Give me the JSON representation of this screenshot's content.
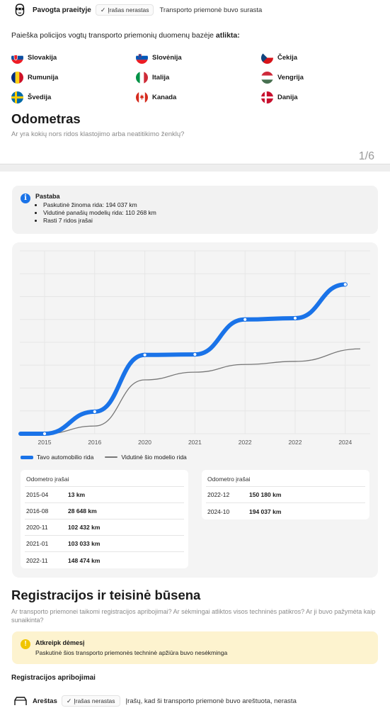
{
  "stolen": {
    "title": "Pavogta praeityje",
    "badge": "Įrašas nerastas",
    "description": "Transporto priemonė buvo surasta"
  },
  "db_search": {
    "text": "Paieška policijos vogtų transporto priemonių duomenų bazėje ",
    "bold": "atlikta:"
  },
  "countries": [
    {
      "name": "Slovakija"
    },
    {
      "name": "Slovėnija"
    },
    {
      "name": "Čekija"
    },
    {
      "name": "Rumunija"
    },
    {
      "name": "Italija"
    },
    {
      "name": "Vengrija"
    },
    {
      "name": "Švedija"
    },
    {
      "name": "Kanada"
    },
    {
      "name": "Danija"
    }
  ],
  "odometer": {
    "title": "Odometras",
    "subtitle": "Ar yra kokių nors ridos klastojimo arba neatitikimo ženklų?",
    "pager": "1/6"
  },
  "note": {
    "title": "Pastaba",
    "items": [
      "Paskutinė žinoma rida: 194 037 km",
      "Vidutinė panašių modelių rida: 110 268 km",
      "Rasti 7 ridos įrašai"
    ]
  },
  "chart_data": {
    "type": "line",
    "x_labels": [
      "2015",
      "2016",
      "2020",
      "2021",
      "2022",
      "2022",
      "2024"
    ],
    "ylim": [
      0,
      210000
    ],
    "series": [
      {
        "name": "Tavo automobilio rida",
        "color": "#1a73e8",
        "points": [
          [
            0,
            13
          ],
          [
            1,
            28648
          ],
          [
            2,
            102432
          ],
          [
            3,
            103033
          ],
          [
            4,
            148474
          ],
          [
            5,
            150180
          ],
          [
            6,
            194037
          ]
        ]
      },
      {
        "name": "Vidutinė šio modelio rida",
        "color": "#777777",
        "points": [
          [
            0,
            0
          ],
          [
            1,
            10000
          ],
          [
            2,
            70000
          ],
          [
            3,
            80000
          ],
          [
            4,
            90000
          ],
          [
            5,
            94000
          ],
          [
            6.3,
            110268
          ]
        ]
      }
    ],
    "grid": true
  },
  "odo_tables": [
    {
      "title": "Odometro įrašai",
      "rows": [
        {
          "date": "2015-04",
          "km": "13 km"
        },
        {
          "date": "2016-08",
          "km": "28 648 km"
        },
        {
          "date": "2020-11",
          "km": "102 432 km"
        },
        {
          "date": "2021-01",
          "km": "103 033 km"
        },
        {
          "date": "2022-11",
          "km": "148 474 km"
        }
      ]
    },
    {
      "title": "Odometro įrašai",
      "rows": [
        {
          "date": "2022-12",
          "km": "150 180 km"
        },
        {
          "date": "2024-10",
          "km": "194 037 km"
        }
      ]
    }
  ],
  "registration": {
    "title": "Registracijos ir teisinė būsena",
    "subtitle": "Ar transporto priemonei taikomi registracijos apribojimai? Ar sėkmingai atliktos visos techninės patikros? Ar ji buvo pažymėta kaip sunaikinta?"
  },
  "warning": {
    "title": "Atkreipk dėmesį",
    "text": "Paskutinė šios transporto priemonės techninė apžiūra buvo nesėkminga"
  },
  "reg_limits": {
    "title": "Registracijos apribojimai"
  },
  "arrested": {
    "title": "Areštas",
    "badge": "Įrašas nerastas",
    "description": "Įrašų, kad ši transporto priemonė buvo areštuota, nerasta"
  }
}
